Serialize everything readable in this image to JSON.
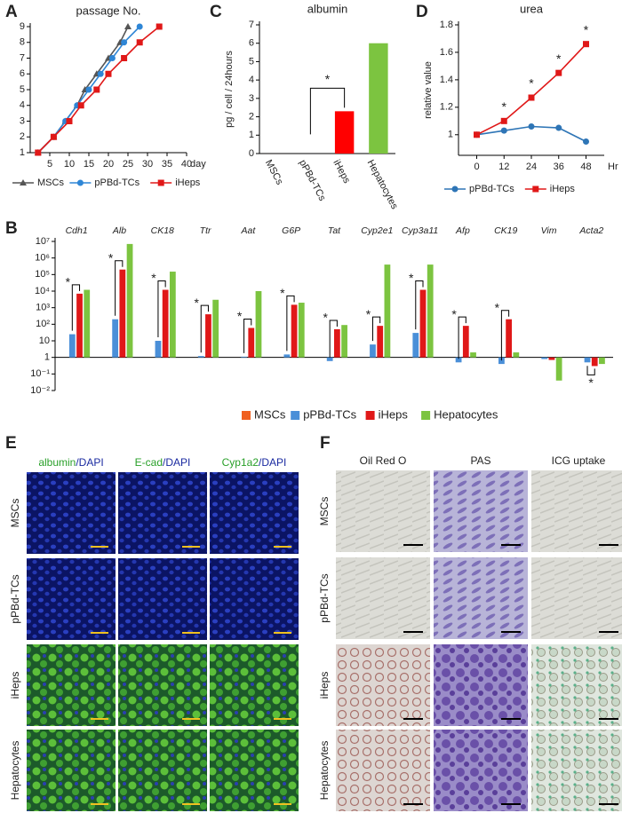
{
  "chart_data": [
    {
      "label": "A",
      "type": "line",
      "title": "passage No.",
      "xlabel": "day",
      "xlim": [
        0,
        40
      ],
      "xticks": [
        5,
        10,
        15,
        20,
        25,
        30,
        35,
        40
      ],
      "ylim": [
        1,
        9
      ],
      "yticks": [
        1,
        2,
        3,
        4,
        5,
        6,
        7,
        8,
        9
      ],
      "series": [
        {
          "name": "MSCs",
          "color": "#555555",
          "marker": "triangle",
          "x": [
            2,
            6,
            9,
            12,
            14,
            17,
            20,
            23,
            25
          ],
          "values": [
            1,
            2,
            3,
            4,
            5,
            6,
            7,
            8,
            9
          ]
        },
        {
          "name": "pPBd-TCs",
          "color": "#2e86d6",
          "marker": "circle",
          "x": [
            2,
            6,
            9,
            12,
            15,
            18,
            21,
            24,
            28
          ],
          "values": [
            1,
            2,
            3,
            4,
            5,
            6,
            7,
            8,
            9
          ]
        },
        {
          "name": "iHeps",
          "color": "#e01818",
          "marker": "square",
          "x": [
            2,
            6,
            10,
            13,
            17,
            20,
            24,
            28,
            33
          ],
          "values": [
            1,
            2,
            3,
            4,
            5,
            6,
            7,
            8,
            9
          ]
        }
      ]
    },
    {
      "label": "B",
      "type": "bar",
      "log_scale": true,
      "categories": [
        "Cdh1",
        "Alb",
        "CK18",
        "Ttr",
        "Aat",
        "G6P",
        "Tat",
        "Cyp2e1",
        "Cyp3a11",
        "Afp",
        "CK19",
        "Vim",
        "Acta2"
      ],
      "ylim": [
        0.01,
        10000000
      ],
      "yticks": [
        {
          "value": 10000000,
          "label": "10⁷"
        },
        {
          "value": 1000000,
          "label": "10⁶"
        },
        {
          "value": 100000,
          "label": "10⁵"
        },
        {
          "value": 10000,
          "label": "10⁴"
        },
        {
          "value": 1000,
          "label": "10³"
        },
        {
          "value": 100,
          "label": "10²"
        },
        10,
        1,
        {
          "value": 0.1,
          "label": "10⁻¹"
        },
        {
          "value": 0.01,
          "label": "10⁻²"
        }
      ],
      "series": [
        {
          "name": "MSCs",
          "color": "#f06020",
          "values": [
            1,
            1,
            1,
            1,
            1,
            1,
            1,
            1,
            1,
            1,
            1,
            1,
            1
          ]
        },
        {
          "name": "pPBd-TCs",
          "color": "#4a8fd8",
          "values": [
            25,
            200,
            10,
            1.2,
            1.1,
            1.5,
            0.6,
            6,
            30,
            0.5,
            0.4,
            0.8,
            0.5
          ]
        },
        {
          "name": "iHeps",
          "color": "#e01818",
          "values": [
            7000,
            200000,
            12000,
            400,
            60,
            1500,
            50,
            80,
            12000,
            80,
            200,
            0.7,
            0.3
          ]
        },
        {
          "name": "Hepatocytes",
          "color": "#7cc440",
          "values": [
            12000,
            7000000,
            150000,
            3000,
            10000,
            2000,
            90,
            400000,
            400000,
            2,
            2,
            0.04,
            0.4
          ]
        }
      ],
      "annotations": [
        {
          "text": "*",
          "category": "Cdh1"
        },
        {
          "text": "*",
          "category": "Alb"
        },
        {
          "text": "*",
          "category": "CK18"
        },
        {
          "text": "*",
          "category": "Ttr"
        },
        {
          "text": "*",
          "category": "Aat"
        },
        {
          "text": "*",
          "category": "G6P"
        },
        {
          "text": "*",
          "category": "Tat"
        },
        {
          "text": "*",
          "category": "Cyp2e1"
        },
        {
          "text": "*",
          "category": "Cyp3a11"
        },
        {
          "text": "*",
          "category": "Afp"
        },
        {
          "text": "*",
          "category": "CK19"
        },
        {
          "text": "*",
          "category": "Acta2"
        }
      ]
    },
    {
      "label": "C",
      "type": "bar",
      "title": "albumin",
      "ylabel": "pg / cell / 24hours",
      "categories": [
        "MSCs",
        "pPBd-TCs",
        "iHeps",
        "Hepatocytes"
      ],
      "values": [
        0,
        0,
        2.3,
        6.0
      ],
      "colors": [
        "#f06020",
        "#4a8fd8",
        "#ff0000",
        "#7cc440"
      ],
      "ylim": [
        0,
        7
      ],
      "yticks": [
        0,
        1,
        2,
        3,
        4,
        5,
        6,
        7
      ],
      "annotations": [
        {
          "text": "*",
          "category": "iHeps"
        }
      ]
    },
    {
      "label": "D",
      "type": "line",
      "title": "urea",
      "ylabel": "relative value",
      "xlabel": "Hr",
      "xlim": [
        -8,
        56
      ],
      "xticks": [
        0,
        12,
        24,
        36,
        48
      ],
      "ylim": [
        0.85,
        1.8
      ],
      "yticks": [
        1,
        1.2,
        1.4,
        1.6,
        1.8
      ],
      "series": [
        {
          "name": "pPBd-TCs",
          "color": "#2e75b6",
          "marker": "circle",
          "x": [
            0,
            12,
            24,
            36,
            48
          ],
          "values": [
            1,
            1.03,
            1.06,
            1.05,
            0.95
          ]
        },
        {
          "name": "iHeps",
          "color": "#e01818",
          "marker": "square",
          "x": [
            0,
            12,
            24,
            36,
            48
          ],
          "values": [
            1,
            1.1,
            1.27,
            1.45,
            1.66
          ]
        }
      ],
      "annotations": [
        {
          "text": "*",
          "x": 12
        },
        {
          "text": "*",
          "x": 24
        },
        {
          "text": "*",
          "x": 36
        },
        {
          "text": "*",
          "x": 48
        }
      ]
    }
  ],
  "figure_e": {
    "label": "E",
    "columns": [
      [
        "albumin",
        "/DAPI"
      ],
      [
        "E-cad",
        "/DAPI"
      ],
      [
        "Cyp1a2",
        "/DAPI"
      ]
    ],
    "rows": [
      "MSCs",
      "pPBd-TCs",
      "iHeps",
      "Hepatocytes"
    ]
  },
  "figure_f": {
    "label": "F",
    "columns": [
      "Oil Red O",
      "PAS",
      "ICG uptake"
    ],
    "rows": [
      "MSCs",
      "pPBd-TCs",
      "iHeps",
      "Hepatocytes"
    ]
  }
}
